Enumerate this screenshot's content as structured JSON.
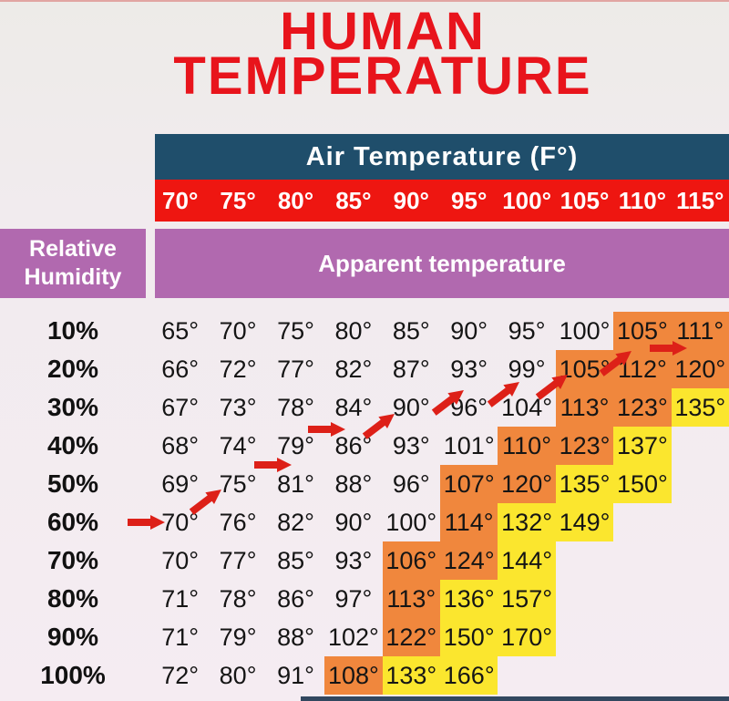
{
  "title": {
    "line1": "HUMAN",
    "line2": "TEMPERATURE"
  },
  "colors": {
    "title_red": "#e8141c",
    "navy_header": "#1f4e6b",
    "red_band": "#ee1611",
    "purple_band": "#b169af",
    "orange_cell": "#f0873d",
    "yellow_cell": "#fbe62e",
    "arrow_red": "#dd2018",
    "background_pink": "#f5ecf2"
  },
  "chart_data": {
    "type": "heatmap",
    "title": "HUMAN TEMPERATURE",
    "x_header": "Air Temperature (F°)",
    "x_ticks": [
      "70°",
      "75°",
      "80°",
      "85°",
      "90°",
      "95°",
      "100°",
      "105°",
      "110°",
      "115°"
    ],
    "y_header_line1": "Relative",
    "y_header_line2": "Humidity",
    "value_header": "Apparent temperature",
    "rows": [
      {
        "humidity": "10%",
        "values": [
          "65°",
          "70°",
          "75°",
          "80°",
          "85°",
          "90°",
          "95°",
          "100°",
          "105°",
          "111°"
        ],
        "orange": [
          9,
          10
        ],
        "yellow": []
      },
      {
        "humidity": "20%",
        "values": [
          "66°",
          "72°",
          "77°",
          "82°",
          "87°",
          "93°",
          "99°",
          "105°",
          "112°",
          "120°"
        ],
        "orange": [
          8,
          9,
          10
        ],
        "yellow": []
      },
      {
        "humidity": "30%",
        "values": [
          "67°",
          "73°",
          "78°",
          "84°",
          "90°",
          "96°",
          "104°",
          "113°",
          "123°",
          "135°"
        ],
        "orange": [
          8,
          9
        ],
        "yellow": [
          10
        ]
      },
      {
        "humidity": "40%",
        "values": [
          "68°",
          "74°",
          "79°",
          "86°",
          "93°",
          "101°",
          "110°",
          "123°",
          "137°"
        ],
        "orange": [
          7,
          8
        ],
        "yellow": [
          9
        ]
      },
      {
        "humidity": "50%",
        "values": [
          "69°",
          "75°",
          "81°",
          "88°",
          "96°",
          "107°",
          "120°",
          "135°",
          "150°"
        ],
        "orange": [
          6,
          7
        ],
        "yellow": [
          8,
          9
        ]
      },
      {
        "humidity": "60%",
        "values": [
          "70°",
          "76°",
          "82°",
          "90°",
          "100°",
          "114°",
          "132°",
          "149°"
        ],
        "orange": [
          6
        ],
        "yellow": [
          7,
          8
        ]
      },
      {
        "humidity": "70%",
        "values": [
          "70°",
          "77°",
          "85°",
          "93°",
          "106°",
          "124°",
          "144°"
        ],
        "orange": [
          5,
          6
        ],
        "yellow": [
          7
        ]
      },
      {
        "humidity": "80%",
        "values": [
          "71°",
          "78°",
          "86°",
          "97°",
          "113°",
          "136°",
          "157°"
        ],
        "orange": [
          5
        ],
        "yellow": [
          6,
          7
        ]
      },
      {
        "humidity": "90%",
        "values": [
          "71°",
          "79°",
          "88°",
          "102°",
          "122°",
          "150°",
          "170°"
        ],
        "orange": [
          5
        ],
        "yellow": [
          6,
          7
        ]
      },
      {
        "humidity": "100%",
        "values": [
          "72°",
          "80°",
          "91°",
          "108°",
          "133°",
          "166°"
        ],
        "orange": [
          4
        ],
        "yellow": [
          5,
          6
        ]
      }
    ],
    "arrow_path_segments": [
      {
        "x": 140,
        "y": 573,
        "angle": 0
      },
      {
        "x": 206,
        "y": 549,
        "angle": -37
      },
      {
        "x": 279,
        "y": 510,
        "angle": 0
      },
      {
        "x": 338,
        "y": 471,
        "angle": 0
      },
      {
        "x": 396,
        "y": 466,
        "angle": -37
      },
      {
        "x": 472,
        "y": 440,
        "angle": -37
      },
      {
        "x": 533,
        "y": 431,
        "angle": -37
      },
      {
        "x": 586,
        "y": 423,
        "angle": -37
      },
      {
        "x": 656,
        "y": 397,
        "angle": -37
      },
      {
        "x": 713,
        "y": 382,
        "angle": 0
      }
    ]
  }
}
